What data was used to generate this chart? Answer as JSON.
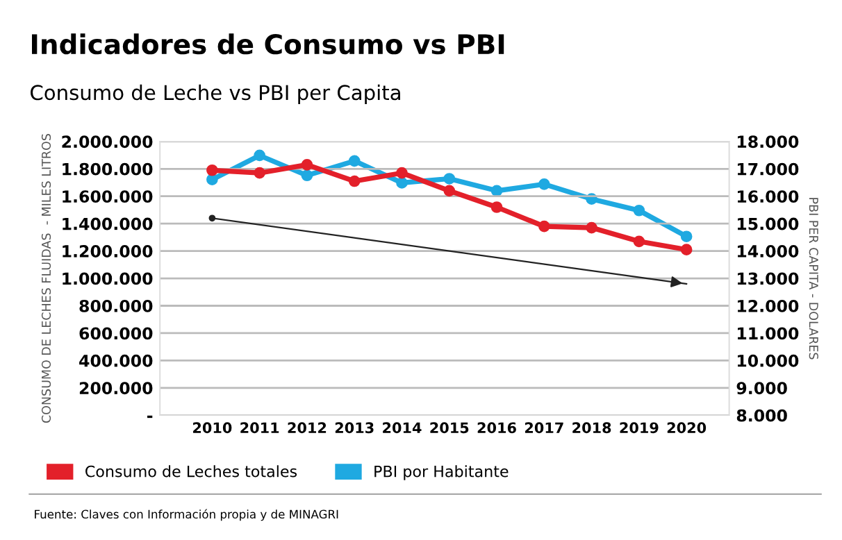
{
  "chart_data": {
    "type": "line",
    "title": "Indicadores de Consumo vs PBI",
    "subtitle": "Consumo de Leche vs PBI per Capita",
    "ylabel": "CONSUMO DE LECHES FLUIDAS  - MILES LITROS",
    "y2label": "PBI PER CAPITA - DOLARES",
    "categories": [
      "2010",
      "2011",
      "2012",
      "2013",
      "2014",
      "2015",
      "2016",
      "2017",
      "2018",
      "2019",
      "2020"
    ],
    "series": [
      {
        "name": "Consumo de Leches totales",
        "color": "#e3202a",
        "values": [
          1790000,
          1770000,
          1830000,
          1710000,
          1770000,
          1640000,
          1520000,
          1380000,
          1370000,
          1270000,
          1210000
        ]
      },
      {
        "name": "PBI por Habitante",
        "color": "#1fa9e1",
        "axis": "y2",
        "values": [
          16610,
          17490,
          16760,
          17290,
          16490,
          16640,
          16200,
          16440,
          15900,
          15480,
          14530
        ]
      },
      {
        "type": "line",
        "color": "#222222",
        "values": [
          1440000,
          null,
          null,
          null,
          null,
          null,
          null,
          null,
          null,
          null,
          960000
        ]
      }
    ],
    "ylim": [
      0,
      2000000
    ],
    "yticks": [
      {
        "value": 0,
        "label": "-"
      },
      {
        "value": 200000,
        "label": "200.000"
      },
      {
        "value": 400000,
        "label": "400.000"
      },
      {
        "value": 600000,
        "label": "600.000"
      },
      {
        "value": 800000,
        "label": "800.000"
      },
      {
        "value": 1000000,
        "label": "1.000.000"
      },
      {
        "value": 1200000,
        "label": "1.200.000"
      },
      {
        "value": 1400000,
        "label": "1.400.000"
      },
      {
        "value": 1600000,
        "label": "1.600.000"
      },
      {
        "value": 1800000,
        "label": "1.800.000"
      },
      {
        "value": 2000000,
        "label": "2.000.000"
      }
    ],
    "y2lim": [
      8000,
      18000
    ],
    "y2ticks": [
      {
        "value": 8000,
        "label": "8.000"
      },
      {
        "value": 9000,
        "label": "9.000"
      },
      {
        "value": 10000,
        "label": "10.000"
      },
      {
        "value": 11000,
        "label": "11.000"
      },
      {
        "value": 12000,
        "label": "12.000"
      },
      {
        "value": 13000,
        "label": "13.000"
      },
      {
        "value": 14000,
        "label": "14.000"
      },
      {
        "value": 15000,
        "label": "15.000"
      },
      {
        "value": 16000,
        "label": "16.000"
      },
      {
        "value": 17000,
        "label": "17.000"
      },
      {
        "value": 18000,
        "label": "18.000"
      }
    ],
    "grid": "y",
    "legend": "bottom",
    "marker": "circle",
    "line_style": "solid",
    "annotations": [
      "Fuente: Claves con Información propia y de MINAGRI"
    ]
  }
}
